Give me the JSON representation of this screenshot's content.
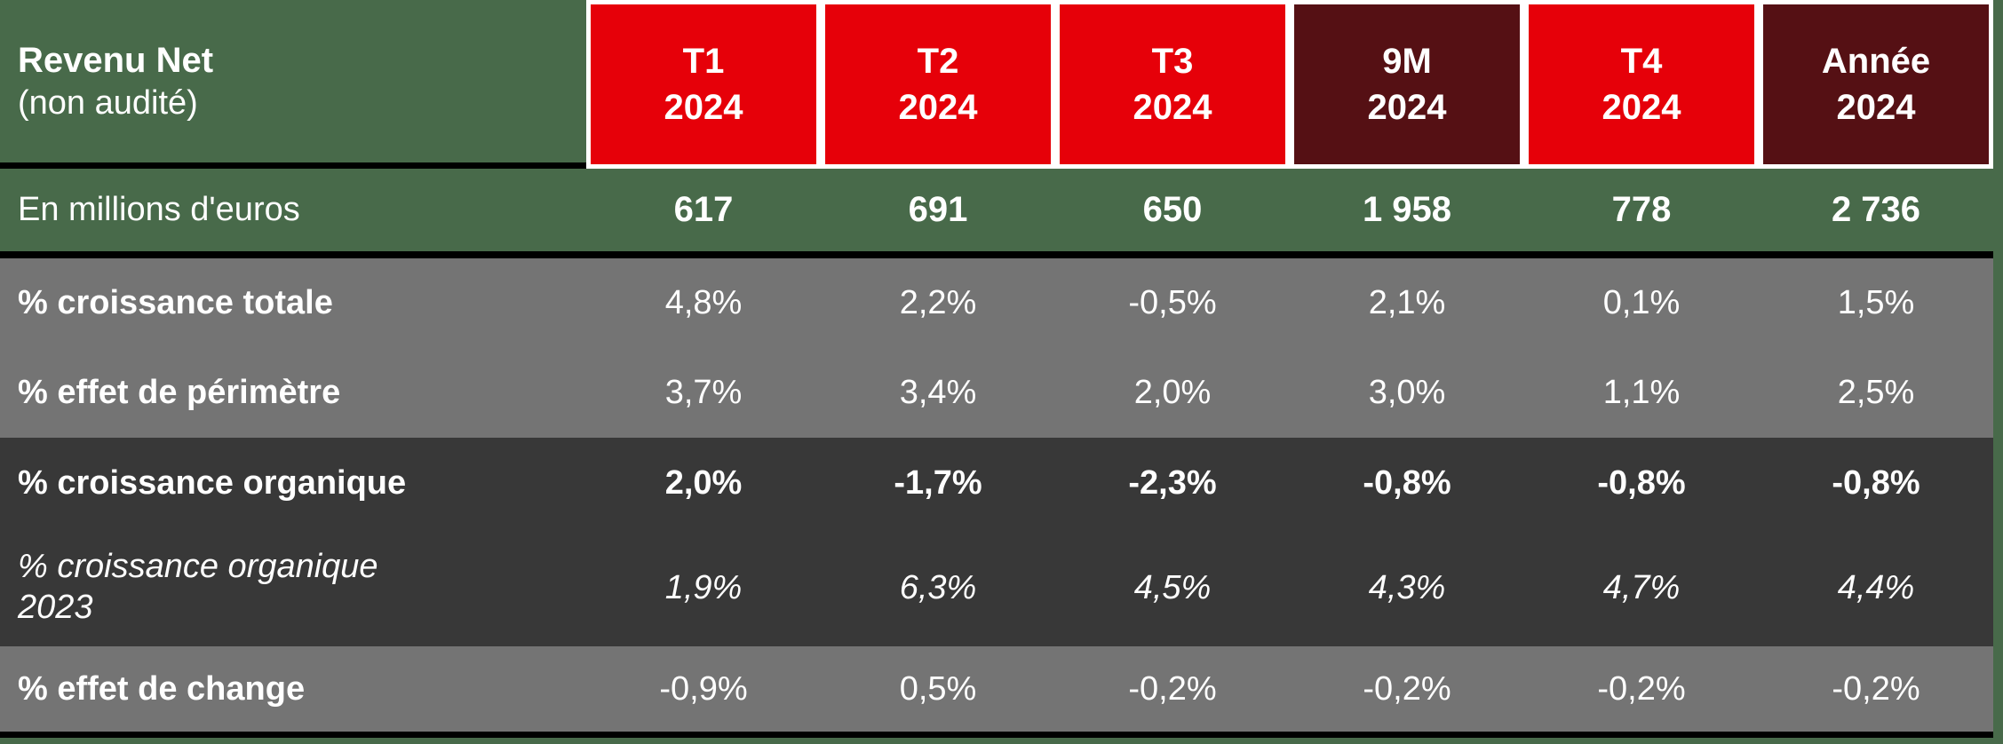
{
  "table": {
    "title": "Revenu Net",
    "subtitle": "(non audité)",
    "columns": [
      {
        "line1": "T1",
        "line2": "2024",
        "variant": "red"
      },
      {
        "line1": "T2",
        "line2": "2024",
        "variant": "red"
      },
      {
        "line1": "T3",
        "line2": "2024",
        "variant": "red"
      },
      {
        "line1": "9M",
        "line2": "2024",
        "variant": "darkred"
      },
      {
        "line1": "T4",
        "line2": "2024",
        "variant": "red"
      },
      {
        "line1": "Année",
        "line2": "2024",
        "variant": "darkred"
      }
    ],
    "rows": [
      {
        "label": "En millions d'euros",
        "values": [
          "617",
          "691",
          "650",
          "1 958",
          "778",
          "2 736"
        ]
      },
      {
        "label": "% croissance totale",
        "values": [
          "4,8%",
          "2,2%",
          "-0,5%",
          "2,1%",
          "0,1%",
          "1,5%"
        ]
      },
      {
        "label": "% effet de périmètre",
        "values": [
          "3,7%",
          "3,4%",
          "2,0%",
          "3,0%",
          "1,1%",
          "2,5%"
        ]
      },
      {
        "label": "% croissance organique",
        "values": [
          "2,0%",
          "-1,7%",
          "-2,3%",
          "-0,8%",
          "-0,8%",
          "-0,8%"
        ]
      },
      {
        "label": "% croissance organique 2023",
        "values": [
          "1,9%",
          "6,3%",
          "4,5%",
          "4,3%",
          "4,7%",
          "4,4%"
        ]
      },
      {
        "label": "% effet de change",
        "values": [
          "-0,9%",
          "0,5%",
          "-0,2%",
          "-0,2%",
          "-0,2%",
          "-0,2%"
        ]
      }
    ],
    "colors": {
      "background_green": "#486a4a",
      "header_red": "#e60009",
      "header_dark_red": "#551014",
      "row_gray": "#747474",
      "row_dark_gray": "#383838",
      "text": "#ffffff",
      "separator": "#000000"
    }
  },
  "chart_data": {
    "type": "table",
    "title": "Revenu Net (non audité)",
    "columns": [
      "T1 2024",
      "T2 2024",
      "T3 2024",
      "9M 2024",
      "T4 2024",
      "Année 2024"
    ],
    "rows": [
      {
        "label": "En millions d'euros",
        "values": [
          617,
          691,
          650,
          1958,
          778,
          2736
        ],
        "unit": "M€"
      },
      {
        "label": "% croissance totale",
        "values": [
          4.8,
          2.2,
          -0.5,
          2.1,
          0.1,
          1.5
        ],
        "unit": "%"
      },
      {
        "label": "% effet de périmètre",
        "values": [
          3.7,
          3.4,
          2.0,
          3.0,
          1.1,
          2.5
        ],
        "unit": "%"
      },
      {
        "label": "% croissance organique",
        "values": [
          2.0,
          -1.7,
          -2.3,
          -0.8,
          -0.8,
          -0.8
        ],
        "unit": "%"
      },
      {
        "label": "% croissance organique 2023",
        "values": [
          1.9,
          6.3,
          4.5,
          4.3,
          4.7,
          4.4
        ],
        "unit": "%"
      },
      {
        "label": "% effet de change",
        "values": [
          -0.9,
          0.5,
          -0.2,
          -0.2,
          -0.2,
          -0.2
        ],
        "unit": "%"
      }
    ]
  }
}
